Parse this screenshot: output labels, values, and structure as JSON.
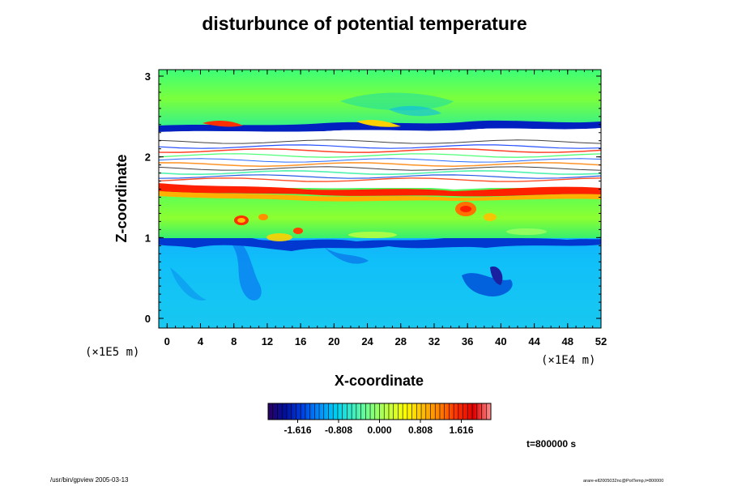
{
  "chart_data": {
    "type": "heatmap",
    "title": "disturbunce of potential temperature",
    "xlabel": "X-coordinate",
    "ylabel": "Z-coordinate",
    "x_ticks": [
      "0",
      "4",
      "8",
      "12",
      "16",
      "20",
      "24",
      "28",
      "32",
      "36",
      "40",
      "44",
      "48",
      "52"
    ],
    "y_ticks": [
      "0",
      "1",
      "2",
      "3"
    ],
    "x_unit": "(×1E4 m)",
    "y_unit": "(×1E5 m)",
    "xlim": [
      -1,
      52
    ],
    "ylim": [
      -0.12,
      3.08
    ],
    "colorbar": {
      "ticks": [
        "-1.616",
        "-0.808",
        "0.000",
        "0.808",
        "1.616"
      ],
      "colors": [
        "#2a0060",
        "#0010a0",
        "#0040e0",
        "#0090ff",
        "#00d0f0",
        "#40f0c0",
        "#80ff80",
        "#c0ff40",
        "#ffff00",
        "#ffc000",
        "#ff8000",
        "#ff3000",
        "#e00000",
        "#ff9090"
      ],
      "range": [
        -2.2,
        2.2
      ]
    },
    "layers": [
      {
        "z": [
          2.95,
          3.08
        ],
        "value": 0.5
      },
      {
        "z": [
          2.45,
          2.95
        ],
        "value": 0.3
      },
      {
        "z": [
          2.35,
          2.45
        ],
        "value": -0.8
      },
      {
        "z": [
          1.62,
          2.35
        ],
        "value": "out-of-range"
      },
      {
        "z": [
          1.55,
          1.62
        ],
        "value": 1.8
      },
      {
        "z": [
          1.05,
          1.55
        ],
        "value": 0.3
      },
      {
        "z": [
          0.95,
          1.05
        ],
        "value": -1.0
      },
      {
        "z": [
          -0.12,
          0.95
        ],
        "value": -0.6
      }
    ]
  },
  "time_label": "t=800000 s",
  "footer_left": "/usr/bin/gpview 2005-03-13",
  "footer_right": "arare-ell2005032nc@PotTemp,t=800000",
  "colors": {
    "background": "#ffffff",
    "axis": "#000000",
    "out_of_range": "#ffffff"
  }
}
